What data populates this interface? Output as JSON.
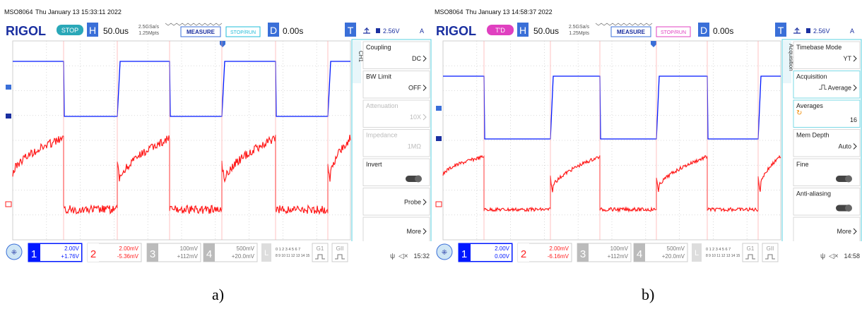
{
  "scopes": [
    {
      "id": "a",
      "caption": "a)",
      "model": "MSO8064",
      "datetime": "Thu January 13 15:33:11 2022",
      "brand": "RIGOL",
      "run_state": "STOP",
      "run_state_color": "#2aa8b8",
      "h_label": "H",
      "timebase": "50.0us",
      "sample_rate": "2.5GSa/s",
      "memory": "1.25Mpts",
      "measure_label": "MEASURE",
      "stoprun_label": "STOP/RUN",
      "stoprun_color": "#22bcd8",
      "d_label": "D",
      "delay": "0.00s",
      "t_label": "T",
      "trigger_level": "2.56V",
      "trigger_mode": "A",
      "menu_tab": "CH1",
      "menu_items": [
        {
          "label": "Coupling",
          "value": "DC",
          "type": "select",
          "enabled": true
        },
        {
          "label": "BW Limit",
          "value": "OFF",
          "type": "select",
          "enabled": true
        },
        {
          "label": "Attenuation",
          "value": "10X",
          "type": "select",
          "enabled": false
        },
        {
          "label": "Impedance",
          "value": "1MΩ",
          "type": "value",
          "enabled": false
        },
        {
          "label": "Invert",
          "value": "",
          "type": "toggle",
          "enabled": true
        },
        {
          "label": "",
          "value": "Probe",
          "type": "select",
          "enabled": true
        },
        {
          "label": "",
          "value": "More",
          "type": "select",
          "enabled": true
        }
      ],
      "channels": [
        {
          "num": "1",
          "scale": "2.00V",
          "offset": "+1.76V",
          "color": "#0018ff",
          "active": true
        },
        {
          "num": "2",
          "scale": "2.00mV",
          "offset": "-5.36mV",
          "color": "#ff2020",
          "active": false
        },
        {
          "num": "3",
          "scale": "100mV",
          "offset": "+112mV",
          "color": "#bbbbbb",
          "active": false
        },
        {
          "num": "4",
          "scale": "500mV",
          "offset": "+20.0mV",
          "color": "#bbbbbb",
          "active": false
        }
      ],
      "logic_row1": "0 1 2 3 4 5 6 7",
      "logic_row2": "8 9 10 11 12 13 14 15",
      "g1": "G1",
      "g2": "GII",
      "time": "15:32",
      "colors": {
        "ch1": "#0018ff",
        "ch2": "#ff1a1a"
      }
    },
    {
      "id": "b",
      "caption": "b)",
      "model": "MSO8064",
      "datetime": "Thu January 13 14:58:37 2022",
      "brand": "RIGOL",
      "run_state": "T'D",
      "run_state_color": "#e040c0",
      "h_label": "H",
      "timebase": "50.0us",
      "sample_rate": "2.5GSa/s",
      "memory": "1.25Mpts",
      "measure_label": "MEASURE",
      "stoprun_label": "STOP/RUN",
      "stoprun_color": "#e040c0",
      "d_label": "D",
      "delay": "0.00s",
      "t_label": "T",
      "trigger_level": "2.56V",
      "trigger_mode": "A",
      "menu_tab": "Acquisition",
      "menu_items": [
        {
          "label": "Timebase Mode",
          "value": "YT",
          "type": "select",
          "enabled": true
        },
        {
          "label": "Acquisition",
          "value": "Average",
          "type": "select",
          "enabled": true
        },
        {
          "label": "Averages",
          "value": "16",
          "type": "knob",
          "enabled": true
        },
        {
          "label": "Mem Depth",
          "value": "Auto",
          "type": "select",
          "enabled": true
        },
        {
          "label": "Fine",
          "value": "",
          "type": "toggle",
          "enabled": true
        },
        {
          "label": "Anti-aliasing",
          "value": "",
          "type": "toggle",
          "enabled": true
        },
        {
          "label": "",
          "value": "More",
          "type": "select",
          "enabled": true
        }
      ],
      "channels": [
        {
          "num": "1",
          "scale": "2.00V",
          "offset": "0.00V",
          "color": "#0018ff",
          "active": true
        },
        {
          "num": "2",
          "scale": "2.00mV",
          "offset": "-6.16mV",
          "color": "#ff2020",
          "active": false
        },
        {
          "num": "3",
          "scale": "100mV",
          "offset": "+112mV",
          "color": "#bbbbbb",
          "active": false
        },
        {
          "num": "4",
          "scale": "500mV",
          "offset": "+20.0mV",
          "color": "#bbbbbb",
          "active": false
        }
      ],
      "logic_row1": "0 1 2 3 4 5 6 7",
      "logic_row2": "8 9 10 11 12 13 14 15",
      "g1": "G1",
      "g2": "GII",
      "time": "14:58",
      "colors": {
        "ch1": "#0018ff",
        "ch2": "#ff1a1a"
      }
    }
  ]
}
